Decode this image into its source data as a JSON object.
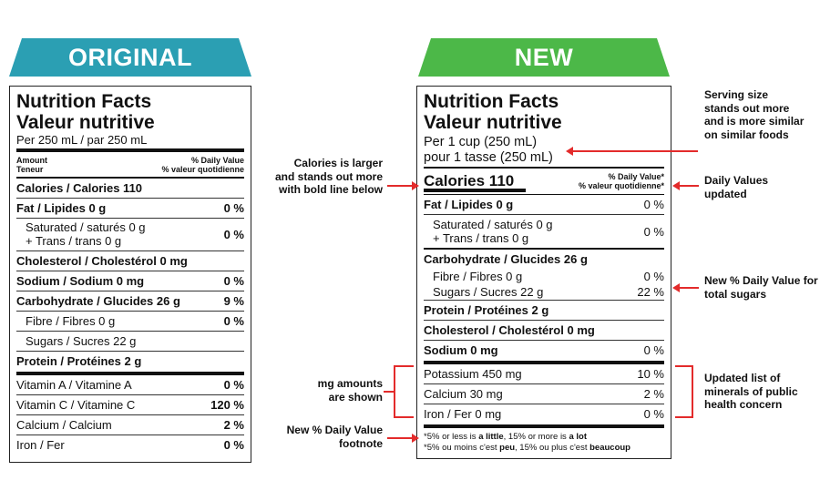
{
  "colors": {
    "original_banner": "#2b9fb3",
    "new_banner": "#4cb848",
    "arrow": "#e32b2b"
  },
  "original": {
    "banner": "ORIGINAL",
    "title1": "Nutrition Facts",
    "title2": "Valeur nutritive",
    "serving": "Per 250 mL  / par 250 mL",
    "hdr_left1": "Amount",
    "hdr_left2": "Teneur",
    "hdr_right1": "% Daily Value",
    "hdr_right2": "% valeur quotidienne",
    "calories": "Calories / Calories 110",
    "fat": {
      "label": "Fat / Lipides 0 g",
      "dv": "0 %"
    },
    "sat1": "Saturated / saturés 0 g",
    "sat2": "+ Trans / trans 0 g",
    "sat_dv": "0 %",
    "chol": "Cholesterol / Cholestérol 0 mg",
    "sodium": {
      "label": "Sodium / Sodium 0 mg",
      "dv": "0 %"
    },
    "carb": {
      "label": "Carbohydrate / Glucides 26 g",
      "dv": "9 %"
    },
    "fibre": {
      "label": "Fibre / Fibres 0 g",
      "dv": "0 %"
    },
    "sugars": "Sugars / Sucres 22 g",
    "protein": "Protein / Protéines 2 g",
    "vita": {
      "label": "Vitamin A / Vitamine A",
      "dv": "0 %"
    },
    "vitc": {
      "label": "Vitamin C / Vitamine C",
      "dv": "120 %"
    },
    "calcium": {
      "label": "Calcium / Calcium",
      "dv": "2 %"
    },
    "iron": {
      "label": "Iron / Fer",
      "dv": "0 %"
    }
  },
  "new": {
    "banner": "NEW",
    "title1": "Nutrition Facts",
    "title2": "Valeur nutritive",
    "serving1": "Per 1 cup (250 mL)",
    "serving2": "pour 1 tasse (250 mL)",
    "calories": "Calories 110",
    "dv1": "% Daily Value*",
    "dv2": "% valeur quotidienne*",
    "fat": {
      "label": "Fat / Lipides 0 g",
      "dv": "0 %"
    },
    "sat1": "Saturated / saturés 0 g",
    "sat2": "+ Trans / trans 0 g",
    "sat_dv": "0 %",
    "carb": "Carbohydrate / Glucides 26 g",
    "fibre": {
      "label": "Fibre / Fibres 0 g",
      "dv": "0 %"
    },
    "sugars": {
      "label": "Sugars / Sucres 22 g",
      "dv": "22 %"
    },
    "protein": "Protein / Protéines 2 g",
    "chol": "Cholesterol / Cholestérol 0 mg",
    "sodium": {
      "label": "Sodium 0 mg",
      "dv": "0 %"
    },
    "potassium": {
      "label": "Potassium 450 mg",
      "dv": "10 %"
    },
    "calcium": {
      "label": "Calcium 30 mg",
      "dv": "2 %"
    },
    "iron": {
      "label": "Iron / Fer 0 mg",
      "dv": "0 %"
    },
    "foot1_pre": "*5% or less is ",
    "foot1_a": "a little",
    "foot1_mid": ", 15% or more is ",
    "foot1_b": "a lot",
    "foot2_pre": "*5% ou moins c'est ",
    "foot2_a": "peu",
    "foot2_mid": ", 15% ou plus c'est ",
    "foot2_b": "beaucoup"
  },
  "annotations": {
    "serving": "Serving size stands out more and is more similar on similar foods",
    "calories": "Calories is larger and stands out more with bold line below",
    "daily_values": "Daily Values updated",
    "sugars": "New % Daily Value for total sugars",
    "mg": "mg amounts are shown",
    "minerals": "Updated list of minerals of public health concern",
    "footnote": "New % Daily Value footnote"
  }
}
